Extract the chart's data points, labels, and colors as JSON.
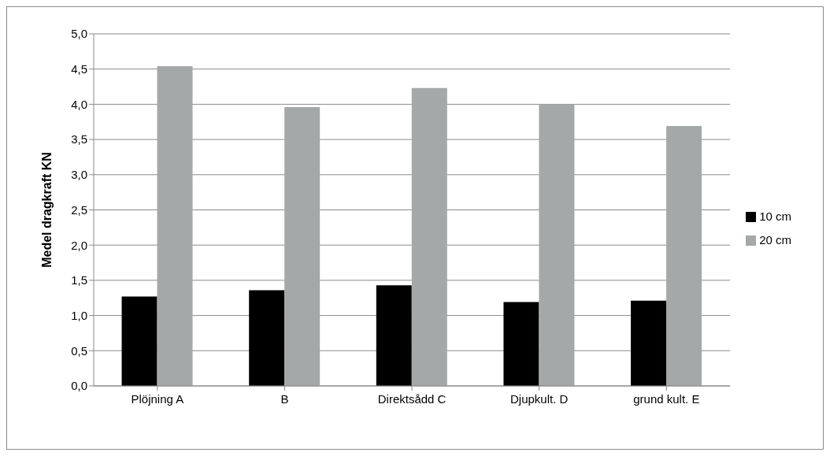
{
  "chart_data": {
    "type": "bar",
    "ylabel": "Medel dragkraft KN",
    "categories": [
      "Plöjning A",
      "B",
      "Direktsådd C",
      "Djupkult. D",
      "grund kult. E"
    ],
    "series": [
      {
        "name": "10 cm",
        "color": "#000000",
        "values": [
          1.27,
          1.36,
          1.43,
          1.19,
          1.21
        ]
      },
      {
        "name": "20 cm",
        "color": "#a5a8a8",
        "values": [
          4.54,
          3.96,
          4.23,
          4.0,
          3.69
        ]
      }
    ],
    "ylim": [
      0,
      5
    ],
    "yticks": [
      {
        "value": 0,
        "label": "0,0"
      },
      {
        "value": 0.5,
        "label": "0,5"
      },
      {
        "value": 1,
        "label": "1,0"
      },
      {
        "value": 1.5,
        "label": "1,5"
      },
      {
        "value": 2,
        "label": "2,0"
      },
      {
        "value": 2.5,
        "label": "2,5"
      },
      {
        "value": 3,
        "label": "3,0"
      },
      {
        "value": 3.5,
        "label": "3,5"
      },
      {
        "value": 4,
        "label": "4,0"
      },
      {
        "value": 4.5,
        "label": "4,5"
      },
      {
        "value": 5,
        "label": "5,0"
      }
    ],
    "grid": "y",
    "legend": "right"
  }
}
